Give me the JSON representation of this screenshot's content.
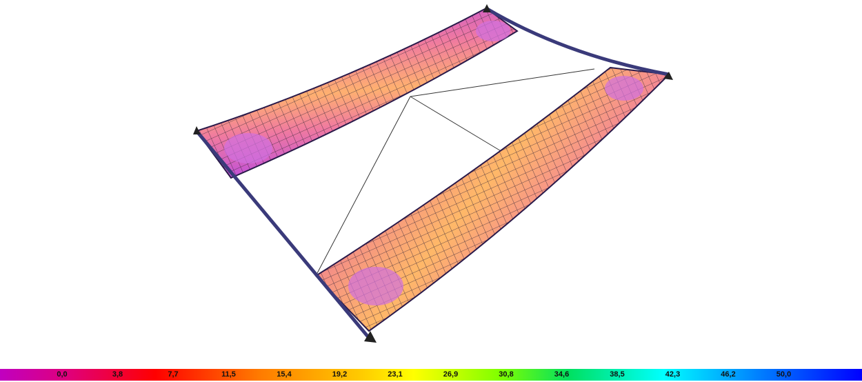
{
  "legend": {
    "labels": [
      "0,0",
      "3,8",
      "7,7",
      "11,5",
      "15,4",
      "19,2",
      "23,1",
      "26,9",
      "30,8",
      "34,6",
      "38,5",
      "42,3",
      "46,2",
      "50,0"
    ]
  }
}
